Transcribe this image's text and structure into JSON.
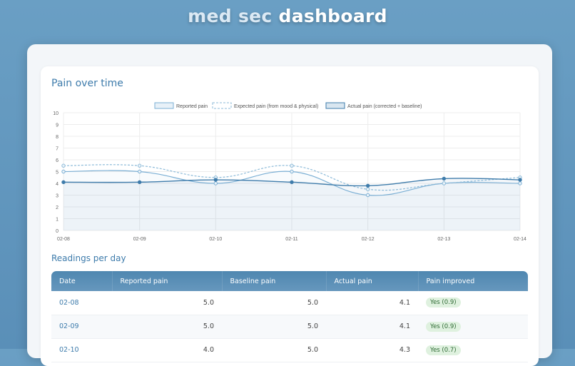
{
  "header": {
    "title_light": "med sec",
    "title_bold": "dashboard"
  },
  "chart_section": {
    "title": "Pain over time"
  },
  "table_section": {
    "title": "Readings per day"
  },
  "chart_data": {
    "type": "line",
    "categories": [
      "02-08",
      "02-09",
      "02-10",
      "02-11",
      "02-12",
      "02-13",
      "02-14"
    ],
    "ylim": [
      0,
      10
    ],
    "yticks": [
      "0",
      "1",
      "2",
      "3",
      "4",
      "5",
      "6",
      "7",
      "8",
      "9",
      "10"
    ],
    "grid": true,
    "legend_position": "top",
    "series": [
      {
        "name": "Reported pain",
        "values": [
          5.0,
          5.0,
          4.0,
          5.0,
          3.0,
          4.0,
          4.0
        ],
        "color": "#7bafd4",
        "style": "solid",
        "fill": true
      },
      {
        "name": "Expected pain (from mood & physical)",
        "values": [
          5.5,
          5.5,
          4.5,
          5.5,
          3.5,
          4.0,
          4.5
        ],
        "color": "#8dbbd9",
        "style": "dashed",
        "fill": false
      },
      {
        "name": "Actual pain (corrected + baseline)",
        "values": [
          4.1,
          4.1,
          4.3,
          4.1,
          3.8,
          4.4,
          4.3
        ],
        "color": "#3f7cab",
        "style": "solid",
        "fill": true
      }
    ]
  },
  "table": {
    "headers": [
      "Date",
      "Reported pain",
      "Baseline pain",
      "Actual pain",
      "Pain improved"
    ],
    "rows": [
      {
        "date": "02-08",
        "reported": "5.0",
        "baseline": "5.0",
        "actual": "4.1",
        "improved": "Yes (0.9)"
      },
      {
        "date": "02-09",
        "reported": "5.0",
        "baseline": "5.0",
        "actual": "4.1",
        "improved": "Yes (0.9)"
      },
      {
        "date": "02-10",
        "reported": "4.0",
        "baseline": "5.0",
        "actual": "4.3",
        "improved": "Yes (0.7)"
      }
    ]
  },
  "colors": {
    "accent": "#3d7bab",
    "badge_bg": "#dff1df",
    "badge_text": "#2f6b34",
    "background": "#5a8fb8"
  }
}
